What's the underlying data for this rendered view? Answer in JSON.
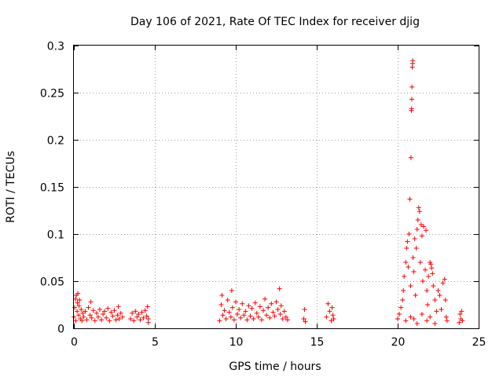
{
  "chart_data": {
    "type": "scatter",
    "title": "Day 106 of 2021, Rate Of TEC Index for receiver djig",
    "xlabel": "GPS time / hours",
    "ylabel": "ROTI / TECUs",
    "xlim": [
      0,
      25
    ],
    "ylim": [
      0,
      0.3
    ],
    "x_ticks": [
      0,
      5,
      10,
      15,
      20,
      25
    ],
    "x_tick_labels": [
      "0",
      "5",
      "10",
      "15",
      "20",
      "25"
    ],
    "y_ticks": [
      0,
      0.05,
      0.1,
      0.15,
      0.2,
      0.25,
      0.3
    ],
    "y_tick_labels": [
      "0",
      "0.05",
      "0.1",
      "0.15",
      "0.2",
      "0.25",
      "0.3"
    ],
    "grid": true,
    "marker": "+",
    "color": "#ff0000",
    "series": [
      {
        "name": "ROTI",
        "points": [
          [
            0.0,
            0.012
          ],
          [
            0.05,
            0.022
          ],
          [
            0.1,
            0.031
          ],
          [
            0.12,
            0.008
          ],
          [
            0.15,
            0.035
          ],
          [
            0.2,
            0.018
          ],
          [
            0.22,
            0.027
          ],
          [
            0.25,
            0.037
          ],
          [
            0.3,
            0.014
          ],
          [
            0.32,
            0.024
          ],
          [
            0.35,
            0.03
          ],
          [
            0.4,
            0.01
          ],
          [
            0.45,
            0.02
          ],
          [
            0.5,
            0.008
          ],
          [
            0.55,
            0.016
          ],
          [
            0.6,
            0.012
          ],
          [
            0.7,
            0.018
          ],
          [
            0.8,
            0.009
          ],
          [
            0.9,
            0.022
          ],
          [
            1.0,
            0.014
          ],
          [
            1.05,
            0.028
          ],
          [
            1.1,
            0.011
          ],
          [
            1.2,
            0.019
          ],
          [
            1.3,
            0.008
          ],
          [
            1.4,
            0.016
          ],
          [
            1.5,
            0.012
          ],
          [
            1.6,
            0.02
          ],
          [
            1.7,
            0.009
          ],
          [
            1.8,
            0.015
          ],
          [
            1.9,
            0.018
          ],
          [
            2.0,
            0.011
          ],
          [
            2.1,
            0.021
          ],
          [
            2.2,
            0.008
          ],
          [
            2.3,
            0.017
          ],
          [
            2.4,
            0.013
          ],
          [
            2.5,
            0.019
          ],
          [
            2.6,
            0.009
          ],
          [
            2.7,
            0.014
          ],
          [
            2.75,
            0.023
          ],
          [
            2.8,
            0.01
          ],
          [
            2.9,
            0.016
          ],
          [
            3.0,
            0.012
          ],
          [
            3.5,
            0.01
          ],
          [
            3.6,
            0.016
          ],
          [
            3.7,
            0.008
          ],
          [
            3.8,
            0.018
          ],
          [
            3.9,
            0.012
          ],
          [
            4.0,
            0.015
          ],
          [
            4.1,
            0.009
          ],
          [
            4.2,
            0.017
          ],
          [
            4.3,
            0.011
          ],
          [
            4.4,
            0.019
          ],
          [
            4.5,
            0.013
          ],
          [
            4.55,
            0.023
          ],
          [
            4.6,
            0.01
          ],
          [
            4.6,
            0.006
          ],
          [
            9.0,
            0.008
          ],
          [
            9.1,
            0.025
          ],
          [
            9.15,
            0.035
          ],
          [
            9.2,
            0.014
          ],
          [
            9.3,
            0.019
          ],
          [
            9.4,
            0.01
          ],
          [
            9.5,
            0.03
          ],
          [
            9.6,
            0.017
          ],
          [
            9.7,
            0.012
          ],
          [
            9.75,
            0.04
          ],
          [
            9.8,
            0.022
          ],
          [
            9.9,
            0.009
          ],
          [
            10.0,
            0.028
          ],
          [
            10.1,
            0.015
          ],
          [
            10.2,
            0.02
          ],
          [
            10.3,
            0.011
          ],
          [
            10.4,
            0.026
          ],
          [
            10.5,
            0.014
          ],
          [
            10.6,
            0.018
          ],
          [
            10.7,
            0.009
          ],
          [
            10.8,
            0.024
          ],
          [
            10.9,
            0.013
          ],
          [
            11.0,
            0.021
          ],
          [
            11.1,
            0.01
          ],
          [
            11.2,
            0.027
          ],
          [
            11.3,
            0.016
          ],
          [
            11.4,
            0.012
          ],
          [
            11.5,
            0.023
          ],
          [
            11.6,
            0.009
          ],
          [
            11.7,
            0.019
          ],
          [
            11.8,
            0.031
          ],
          [
            11.9,
            0.014
          ],
          [
            12.0,
            0.022
          ],
          [
            12.1,
            0.011
          ],
          [
            12.2,
            0.026
          ],
          [
            12.3,
            0.017
          ],
          [
            12.4,
            0.013
          ],
          [
            12.5,
            0.028
          ],
          [
            12.6,
            0.02
          ],
          [
            12.7,
            0.042
          ],
          [
            12.75,
            0.015
          ],
          [
            12.8,
            0.024
          ],
          [
            12.9,
            0.01
          ],
          [
            13.0,
            0.018
          ],
          [
            13.1,
            0.012
          ],
          [
            13.2,
            0.009
          ],
          [
            14.2,
            0.01
          ],
          [
            14.25,
            0.02
          ],
          [
            14.3,
            0.007
          ],
          [
            15.6,
            0.012
          ],
          [
            15.7,
            0.026
          ],
          [
            15.8,
            0.018
          ],
          [
            15.9,
            0.008
          ],
          [
            15.95,
            0.022
          ],
          [
            16.0,
            0.014
          ],
          [
            16.05,
            0.01
          ],
          [
            20.0,
            0.01
          ],
          [
            20.1,
            0.015
          ],
          [
            20.2,
            0.022
          ],
          [
            20.3,
            0.03
          ],
          [
            20.35,
            0.04
          ],
          [
            20.4,
            0.055
          ],
          [
            20.5,
            0.07
          ],
          [
            20.55,
            0.085
          ],
          [
            20.6,
            0.092
          ],
          [
            20.65,
            0.065
          ],
          [
            20.7,
            0.1
          ],
          [
            20.75,
            0.137
          ],
          [
            20.8,
            0.045
          ],
          [
            20.82,
            0.181
          ],
          [
            20.85,
            0.231
          ],
          [
            20.86,
            0.233
          ],
          [
            20.87,
            0.243
          ],
          [
            20.88,
            0.256
          ],
          [
            20.9,
            0.277
          ],
          [
            20.92,
            0.281
          ],
          [
            20.93,
            0.284
          ],
          [
            20.95,
            0.075
          ],
          [
            21.0,
            0.06
          ],
          [
            21.05,
            0.095
          ],
          [
            21.1,
            0.035
          ],
          [
            21.15,
            0.085
          ],
          [
            21.2,
            0.105
          ],
          [
            21.25,
            0.115
          ],
          [
            21.3,
            0.128
          ],
          [
            21.35,
            0.124
          ],
          [
            21.4,
            0.07
          ],
          [
            21.45,
            0.11
          ],
          [
            21.5,
            0.098
          ],
          [
            21.55,
            0.05
          ],
          [
            21.6,
            0.108
          ],
          [
            21.7,
            0.062
          ],
          [
            21.75,
            0.104
          ],
          [
            21.8,
            0.04
          ],
          [
            21.85,
            0.025
          ],
          [
            21.9,
            0.055
          ],
          [
            22.0,
            0.07
          ],
          [
            22.05,
            0.068
          ],
          [
            22.1,
            0.064
          ],
          [
            22.15,
            0.058
          ],
          [
            22.2,
            0.045
          ],
          [
            22.3,
            0.03
          ],
          [
            22.4,
            0.018
          ],
          [
            22.5,
            0.04
          ],
          [
            22.6,
            0.035
          ],
          [
            22.7,
            0.02
          ],
          [
            22.8,
            0.048
          ],
          [
            22.9,
            0.052
          ],
          [
            22.95,
            0.03
          ],
          [
            23.0,
            0.012
          ],
          [
            23.05,
            0.008
          ],
          [
            23.8,
            0.006
          ],
          [
            23.85,
            0.015
          ],
          [
            23.9,
            0.01
          ],
          [
            23.95,
            0.018
          ],
          [
            24.0,
            0.008
          ],
          [
            21.0,
            0.01
          ],
          [
            21.2,
            0.005
          ],
          [
            21.5,
            0.015
          ],
          [
            21.8,
            0.008
          ],
          [
            22.0,
            0.012
          ],
          [
            22.3,
            0.005
          ],
          [
            20.5,
            0.008
          ],
          [
            20.8,
            0.012
          ]
        ]
      }
    ]
  }
}
